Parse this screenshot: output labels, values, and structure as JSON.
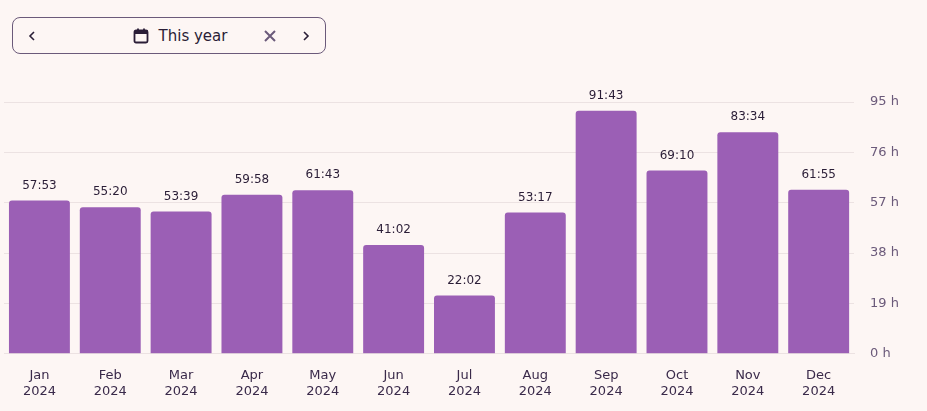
{
  "date_filter": {
    "label": "This year"
  },
  "chart_data": {
    "type": "bar",
    "categories": [
      "Jan 2024",
      "Feb 2024",
      "Mar 2024",
      "Apr 2024",
      "May 2024",
      "Jun 2024",
      "Jul 2024",
      "Aug 2024",
      "Sep 2024",
      "Oct 2024",
      "Nov 2024",
      "Dec 2024"
    ],
    "values": [
      57.883,
      55.333,
      53.65,
      59.967,
      61.717,
      41.033,
      22.033,
      53.283,
      91.717,
      69.167,
      83.567,
      61.917
    ],
    "value_labels": [
      "57:53",
      "55:20",
      "53:39",
      "59:58",
      "61:43",
      "41:02",
      "22:02",
      "53:17",
      "91:43",
      "69:10",
      "83:34",
      "61:55"
    ],
    "data_labels": true,
    "color": "#9b5fb5",
    "ylim": [
      0,
      95
    ],
    "yticks": [
      {
        "value": 0,
        "label": "0 h"
      },
      {
        "value": 19,
        "label": "19 h"
      },
      {
        "value": 38,
        "label": "38 h"
      },
      {
        "value": 57,
        "label": "57 h"
      },
      {
        "value": 76,
        "label": "76 h"
      },
      {
        "value": 95,
        "label": "95 h"
      }
    ],
    "grid": true
  }
}
